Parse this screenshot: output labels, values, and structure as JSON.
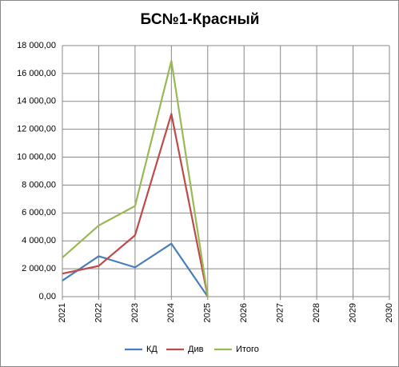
{
  "chart_data": {
    "type": "line",
    "title": "БС№1-Красный",
    "categories": [
      "2021",
      "2022",
      "2023",
      "2024",
      "2025",
      "2026",
      "2027",
      "2028",
      "2029",
      "2030"
    ],
    "series": [
      {
        "name": "КД",
        "color": "#4a7ebb",
        "values": [
          1150,
          2900,
          2100,
          3800,
          0,
          null,
          null,
          null,
          null,
          null
        ]
      },
      {
        "name": "Див",
        "color": "#be4b48",
        "values": [
          1650,
          2200,
          4400,
          13100,
          0,
          null,
          null,
          null,
          null,
          null
        ]
      },
      {
        "name": "Итого",
        "color": "#98b954",
        "values": [
          2800,
          5100,
          6500,
          16900,
          0,
          null,
          null,
          null,
          null,
          null
        ]
      }
    ],
    "ylim": [
      0,
      18000
    ],
    "yticks": [
      {
        "value": 0,
        "label": "0,00"
      },
      {
        "value": 2000,
        "label": "2 000,00"
      },
      {
        "value": 4000,
        "label": "4 000,00"
      },
      {
        "value": 6000,
        "label": "6 000,00"
      },
      {
        "value": 8000,
        "label": "8 000,00"
      },
      {
        "value": 10000,
        "label": "10 000,00"
      },
      {
        "value": 12000,
        "label": "12 000,00"
      },
      {
        "value": 14000,
        "label": "14 000,00"
      },
      {
        "value": 16000,
        "label": "16 000,00"
      },
      {
        "value": 18000,
        "label": "18 000,00"
      }
    ],
    "grid": true,
    "legend": "bottom"
  }
}
